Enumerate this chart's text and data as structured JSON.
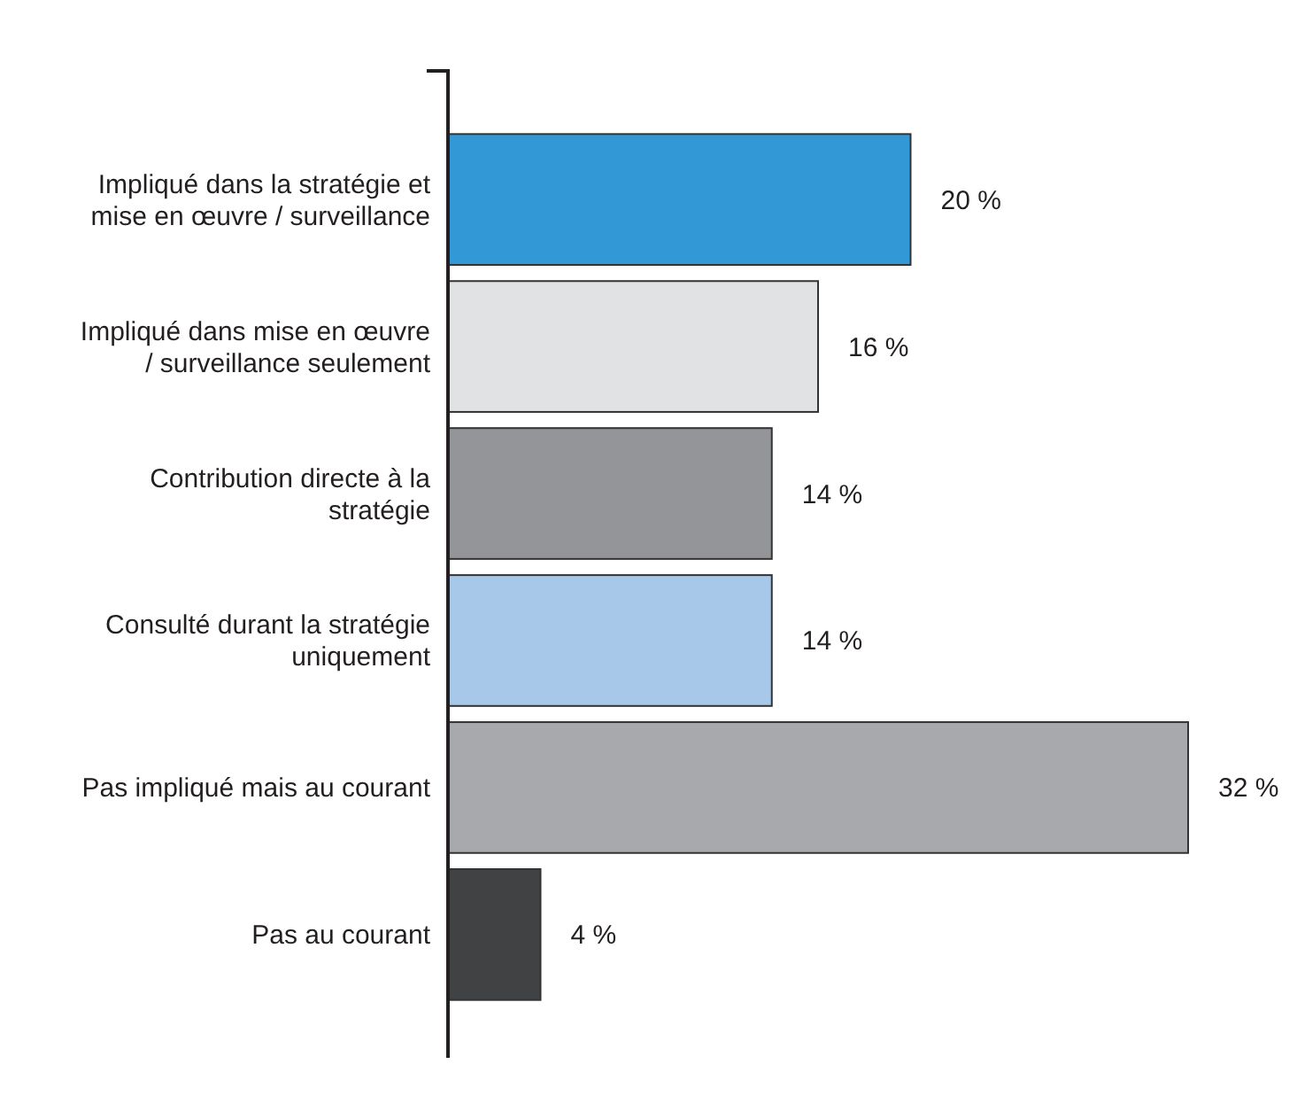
{
  "chart_data": {
    "type": "bar",
    "orientation": "horizontal",
    "categories": [
      "Impliqué dans la stratégie et mise en œuvre / surveillance",
      "Impliqué dans mise en œuvre / surveillance seulement",
      "Contribution directe à la stratégie",
      "Consulté durant la stratégie uniquement",
      "Pas impliqué mais au courant",
      "Pas au courant"
    ],
    "values": [
      20,
      16,
      14,
      14,
      32,
      4
    ],
    "colors": [
      "#3399d6",
      "#e1e2e4",
      "#939598",
      "#a8c8ea",
      "#a7a9ac",
      "#414244"
    ],
    "value_labels": [
      "20 %",
      "16 %",
      "14 %",
      "14 %",
      "32 %",
      "4 %"
    ]
  }
}
